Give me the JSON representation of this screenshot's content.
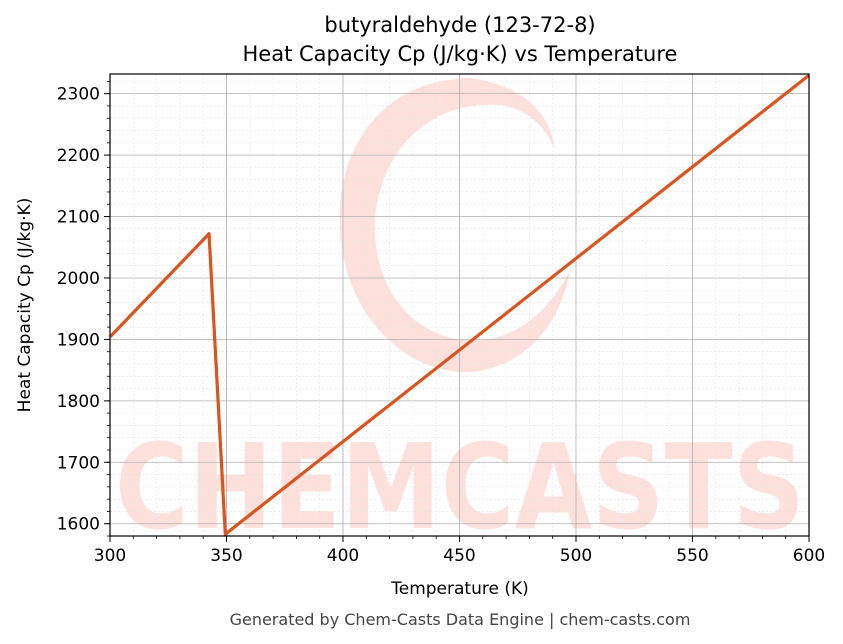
{
  "chart_data": {
    "type": "line",
    "title_line1": "butyraldehyde (123-72-8)",
    "title_line2": "Heat Capacity Cp (J/kg·K) vs Temperature",
    "xlabel": "Temperature (K)",
    "ylabel": "Heat Capacity Cp (J/kg·K)",
    "xlim": [
      300,
      600
    ],
    "ylim": [
      1580,
      2332
    ],
    "x_ticks": [
      300,
      350,
      400,
      450,
      500,
      550,
      600
    ],
    "y_ticks": [
      1600,
      1700,
      1800,
      1900,
      2000,
      2100,
      2200,
      2300
    ],
    "grid": true,
    "series": [
      {
        "color": "#d9541e",
        "x": [
          300,
          342.5,
          349.5,
          350.5,
          600
        ],
        "y": [
          1904,
          2072,
          1582,
          1586,
          2330
        ]
      }
    ]
  },
  "watermark": {
    "text": "CHEMCASTS",
    "color": "#fde0db"
  },
  "footer": "Generated by Chem-Casts Data Engine | chem-casts.com"
}
